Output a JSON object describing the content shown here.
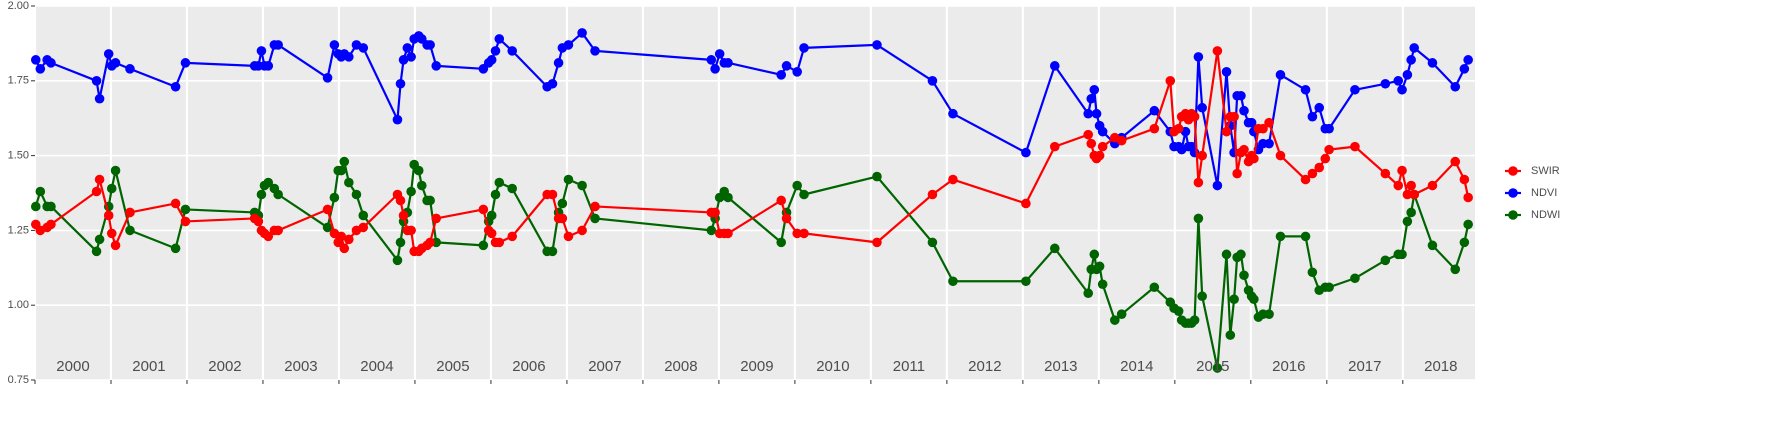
{
  "chart_data": {
    "type": "line",
    "x": [
      2000.01,
      2000.07,
      2000.16,
      2000.21,
      2000.81,
      2000.85,
      2000.97,
      2001.01,
      2001.06,
      2001.25,
      2001.85,
      2001.98,
      2002.89,
      2002.94,
      2002.98,
      2003.02,
      2003.07,
      2003.15,
      2003.2,
      2003.85,
      2003.94,
      2003.99,
      2004.03,
      2004.07,
      2004.13,
      2004.23,
      2004.32,
      2004.77,
      2004.81,
      2004.85,
      2004.9,
      2004.95,
      2004.99,
      2005.05,
      2005.09,
      2005.16,
      2005.2,
      2005.28,
      2005.9,
      2005.97,
      2006.01,
      2006.06,
      2006.11,
      2006.28,
      2006.74,
      2006.81,
      2006.89,
      2006.94,
      2007.02,
      2007.2,
      2007.37,
      2008.9,
      2008.95,
      2009.01,
      2009.07,
      2009.12,
      2009.82,
      2009.89,
      2010.03,
      2010.12,
      2011.08,
      2011.81,
      2012.08,
      2013.04,
      2013.42,
      2013.86,
      2013.9,
      2013.94,
      2013.97,
      2014.01,
      2014.05,
      2014.21,
      2014.3,
      2014.73,
      2014.94,
      2014.99,
      2015.05,
      2015.09,
      2015.14,
      2015.18,
      2015.22,
      2015.26,
      2015.31,
      2015.36,
      2015.56,
      2015.68,
      2015.73,
      2015.78,
      2015.82,
      2015.87,
      2015.91,
      2015.97,
      2016.01,
      2016.04,
      2016.1,
      2016.16,
      2016.24,
      2016.39,
      2016.72,
      2016.81,
      2016.9,
      2016.98,
      2017.03,
      2017.37,
      2017.77,
      2017.94,
      2017.99,
      2018.06,
      2018.11,
      2018.15,
      2018.39,
      2018.69,
      2018.81,
      2018.86
    ],
    "series": [
      {
        "name": "SWIR",
        "color": "#ff0000",
        "values": [
          1.27,
          1.25,
          1.26,
          1.27,
          1.38,
          1.42,
          1.3,
          1.24,
          1.2,
          1.31,
          1.34,
          1.28,
          1.29,
          1.28,
          1.25,
          1.24,
          1.23,
          1.25,
          1.25,
          1.32,
          1.24,
          1.21,
          1.23,
          1.19,
          1.22,
          1.25,
          1.26,
          1.37,
          1.35,
          1.3,
          1.25,
          1.25,
          1.18,
          1.18,
          1.19,
          1.2,
          1.21,
          1.29,
          1.32,
          1.25,
          1.24,
          1.21,
          1.21,
          1.23,
          1.37,
          1.37,
          1.29,
          1.29,
          1.23,
          1.25,
          1.33,
          1.31,
          1.31,
          1.24,
          1.24,
          1.24,
          1.35,
          1.29,
          1.24,
          1.24,
          1.21,
          1.37,
          1.42,
          1.34,
          1.53,
          1.57,
          1.54,
          1.5,
          1.49,
          1.5,
          1.53,
          1.56,
          1.55,
          1.59,
          1.75,
          1.58,
          1.59,
          1.63,
          1.64,
          1.62,
          1.64,
          1.63,
          1.41,
          1.5,
          1.85,
          1.58,
          1.63,
          1.63,
          1.44,
          1.51,
          1.52,
          1.48,
          1.5,
          1.49,
          1.59,
          1.59,
          1.61,
          1.5,
          1.42,
          1.44,
          1.46,
          1.49,
          1.52,
          1.53,
          1.44,
          1.4,
          1.45,
          1.37,
          1.4,
          1.37,
          1.4,
          1.48,
          1.42,
          1.36
        ]
      },
      {
        "name": "NDVI",
        "color": "#0000ff",
        "values": [
          1.82,
          1.79,
          1.82,
          1.81,
          1.75,
          1.69,
          1.84,
          1.8,
          1.81,
          1.79,
          1.73,
          1.81,
          1.8,
          1.8,
          1.85,
          1.8,
          1.8,
          1.87,
          1.87,
          1.76,
          1.87,
          1.84,
          1.83,
          1.84,
          1.83,
          1.87,
          1.86,
          1.62,
          1.74,
          1.82,
          1.86,
          1.83,
          1.89,
          1.9,
          1.89,
          1.87,
          1.87,
          1.8,
          1.79,
          1.81,
          1.82,
          1.85,
          1.89,
          1.85,
          1.73,
          1.74,
          1.81,
          1.86,
          1.87,
          1.91,
          1.85,
          1.82,
          1.79,
          1.84,
          1.81,
          1.81,
          1.77,
          1.8,
          1.78,
          1.86,
          1.87,
          1.75,
          1.64,
          1.51,
          1.8,
          1.64,
          1.69,
          1.72,
          1.64,
          1.6,
          1.58,
          1.54,
          1.56,
          1.65,
          1.58,
          1.53,
          1.53,
          1.52,
          1.58,
          1.53,
          1.53,
          1.51,
          1.83,
          1.66,
          1.4,
          1.78,
          1.6,
          1.51,
          1.7,
          1.7,
          1.65,
          1.61,
          1.61,
          1.58,
          1.52,
          1.54,
          1.54,
          1.77,
          1.72,
          1.63,
          1.66,
          1.59,
          1.59,
          1.72,
          1.74,
          1.75,
          1.72,
          1.77,
          1.82,
          1.86,
          1.81,
          1.73,
          1.79,
          1.82
        ]
      },
      {
        "name": "NDWI",
        "color": "#006400",
        "values": [
          1.33,
          1.38,
          1.33,
          1.33,
          1.18,
          1.22,
          1.33,
          1.39,
          1.45,
          1.25,
          1.19,
          1.32,
          1.31,
          1.3,
          1.37,
          1.4,
          1.41,
          1.39,
          1.37,
          1.26,
          1.36,
          1.45,
          1.45,
          1.48,
          1.41,
          1.37,
          1.3,
          1.15,
          1.21,
          1.28,
          1.31,
          1.38,
          1.47,
          1.45,
          1.4,
          1.35,
          1.35,
          1.21,
          1.2,
          1.28,
          1.3,
          1.37,
          1.41,
          1.39,
          1.18,
          1.18,
          1.31,
          1.34,
          1.42,
          1.4,
          1.29,
          1.25,
          1.29,
          1.36,
          1.38,
          1.36,
          1.21,
          1.31,
          1.4,
          1.37,
          1.43,
          1.21,
          1.08,
          1.08,
          1.19,
          1.04,
          1.12,
          1.17,
          1.12,
          1.13,
          1.07,
          0.95,
          0.97,
          1.06,
          1.01,
          0.99,
          0.98,
          0.95,
          0.94,
          0.94,
          0.94,
          0.95,
          1.29,
          1.03,
          0.79,
          1.17,
          0.9,
          1.02,
          1.16,
          1.17,
          1.1,
          1.05,
          1.03,
          1.02,
          0.96,
          0.97,
          0.97,
          1.23,
          1.23,
          1.11,
          1.05,
          1.06,
          1.06,
          1.09,
          1.15,
          1.17,
          1.17,
          1.28,
          1.31,
          1.37,
          1.2,
          1.12,
          1.21,
          1.27
        ]
      }
    ],
    "xlim": [
      2000,
      2018.95
    ],
    "xticks": [
      2000,
      2001,
      2002,
      2003,
      2004,
      2005,
      2006,
      2007,
      2008,
      2009,
      2010,
      2011,
      2012,
      2013,
      2014,
      2015,
      2016,
      2017,
      2018
    ],
    "ylim": [
      0.75,
      2.0
    ],
    "yticks": [
      {
        "value": 0.75,
        "label": "0.75"
      },
      {
        "value": 1.0,
        "label": "1.00"
      },
      {
        "value": 1.25,
        "label": "1.25"
      },
      {
        "value": 1.5,
        "label": "1.50"
      },
      {
        "value": 1.75,
        "label": "1.75"
      },
      {
        "value": 2.0,
        "label": "2.00"
      }
    ],
    "grid": true,
    "legend": "right"
  }
}
